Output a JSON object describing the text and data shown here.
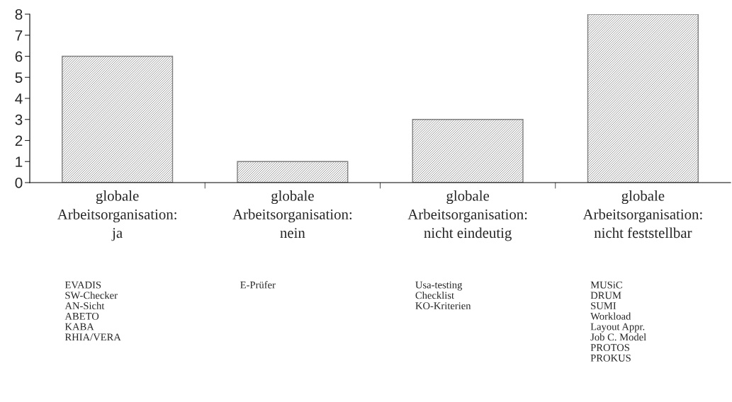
{
  "chart_data": {
    "type": "bar",
    "categories": [
      "globale\nArbeitsorganisation:\nja",
      "globale\nArbeitsorganisation:\nnein",
      "globale\nArbeitsorganisation:\nnicht eindeutig",
      "globale\nArbeitsorganisation:\nnicht feststellbar"
    ],
    "values": [
      6,
      1,
      3,
      8
    ],
    "color": "#7f7f7f",
    "ylim": [
      0,
      8
    ],
    "yticks": [
      0,
      1,
      2,
      3,
      4,
      5,
      6,
      7,
      8
    ],
    "grid": false,
    "legend": false,
    "annotations": [
      "EVADIS\nSW-Checker\nAN-Sicht\nABETO\nKABA\nRHIA/VERA",
      "E-Prüfer",
      "Usa-testing\nChecklist\nKO-Kriterien",
      "MUSiC\nDRUM\nSUMI\nWorkload\nLayout Appr.\nJob C. Model\nPROTOS\nPROKUS"
    ]
  }
}
